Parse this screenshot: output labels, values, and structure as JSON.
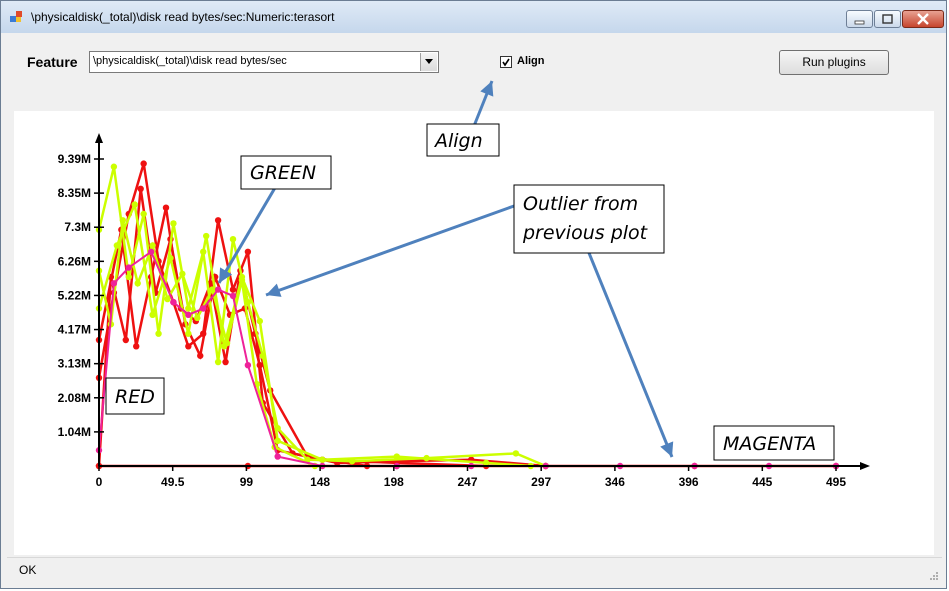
{
  "window": {
    "title": "\\physicaldisk(_total)\\disk read bytes/sec:Numeric:terasort"
  },
  "toolbar": {
    "feature_label": "Feature",
    "feature_value": "\\physicaldisk(_total)\\disk read bytes/sec",
    "align_label": "Align",
    "align_checked": true,
    "run_label": "Run plugins"
  },
  "status": {
    "text": "OK"
  },
  "annotations": {
    "align": "Align",
    "green": "GREEN",
    "outlier_line1": "Outlier from",
    "outlier_line2": "previous plot",
    "red": "RED",
    "magenta": "MAGENTA"
  },
  "chart_data": {
    "type": "line",
    "title": "",
    "xlabel": "",
    "ylabel": "",
    "x_ticks": [
      "0",
      "49.5",
      "99",
      "148",
      "198",
      "247",
      "297",
      "346",
      "396",
      "445",
      "495"
    ],
    "y_ticks": [
      "1.04M",
      "2.08M",
      "3.13M",
      "4.17M",
      "5.22M",
      "6.26M",
      "7.3M",
      "8.35M",
      "9.39M"
    ],
    "xlim": [
      0,
      495
    ],
    "ylim": [
      0,
      10000000
    ],
    "colors": {
      "red": "#ee1111",
      "green": "#ccff00",
      "magenta": "#ee2299"
    },
    "series": [
      {
        "color": "red",
        "x": [
          0,
          10,
          20,
          30,
          40,
          50,
          60,
          70,
          80,
          90,
          100,
          110,
          130,
          160,
          200,
          250,
          300
        ],
        "values": [
          2800000,
          5500000,
          8000000,
          9600000,
          6500000,
          5200000,
          3800000,
          4200000,
          7800000,
          5600000,
          6800000,
          2000000,
          400000,
          100000,
          150000,
          200000,
          0
        ]
      },
      {
        "color": "red",
        "x": [
          0,
          8,
          18,
          28,
          38,
          48,
          58,
          68,
          78,
          88,
          98,
          108,
          120,
          150,
          200,
          260
        ],
        "values": [
          0,
          6000000,
          4000000,
          8800000,
          5500000,
          7200000,
          4500000,
          3500000,
          6000000,
          4800000,
          5000000,
          3200000,
          500000,
          200000,
          100000,
          0
        ]
      },
      {
        "color": "red",
        "x": [
          0,
          15,
          25,
          35,
          45,
          55,
          65,
          75,
          85,
          95,
          105,
          115,
          140,
          180
        ],
        "values": [
          4000000,
          7500000,
          3800000,
          6000000,
          8200000,
          5000000,
          4600000,
          5800000,
          3300000,
          6200000,
          4200000,
          2400000,
          300000,
          0
        ]
      },
      {
        "color": "red",
        "x": [
          0,
          100,
          200,
          300,
          400,
          495
        ],
        "values": [
          0,
          0,
          0,
          0,
          0,
          0
        ]
      },
      {
        "color": "green",
        "x": [
          0,
          10,
          20,
          30,
          40,
          50,
          60,
          70,
          80,
          90,
          100,
          110,
          120,
          140,
          170,
          220,
          280,
          300
        ],
        "values": [
          7500000,
          9500000,
          6000000,
          8000000,
          4200000,
          7700000,
          5000000,
          6800000,
          3300000,
          7200000,
          5200000,
          3500000,
          1200000,
          200000,
          150000,
          250000,
          400000,
          0
        ]
      },
      {
        "color": "green",
        "x": [
          0,
          12,
          24,
          36,
          48,
          60,
          72,
          84,
          96,
          108,
          120,
          150,
          200,
          260,
          290
        ],
        "values": [
          5000000,
          7000000,
          8300000,
          4800000,
          6600000,
          4200000,
          7300000,
          3800000,
          6000000,
          4600000,
          800000,
          200000,
          300000,
          100000,
          0
        ]
      },
      {
        "color": "green",
        "x": [
          0,
          8,
          16,
          26,
          36,
          46,
          56,
          66,
          76,
          86,
          96,
          106,
          118,
          145
        ],
        "values": [
          6200000,
          4500000,
          7800000,
          5800000,
          7000000,
          5300000,
          6100000,
          4700000,
          5600000,
          3900000,
          5900000,
          2600000,
          600000,
          0
        ]
      },
      {
        "color": "magenta",
        "x": [
          0,
          10,
          20,
          35,
          50,
          60,
          70,
          80,
          90,
          100,
          120,
          150,
          200,
          250,
          300,
          350,
          400,
          450,
          495
        ],
        "values": [
          500000,
          5800000,
          6300000,
          6800000,
          5200000,
          4800000,
          5000000,
          5600000,
          5400000,
          3200000,
          300000,
          0,
          0,
          0,
          0,
          0,
          0,
          0,
          0
        ]
      }
    ]
  }
}
